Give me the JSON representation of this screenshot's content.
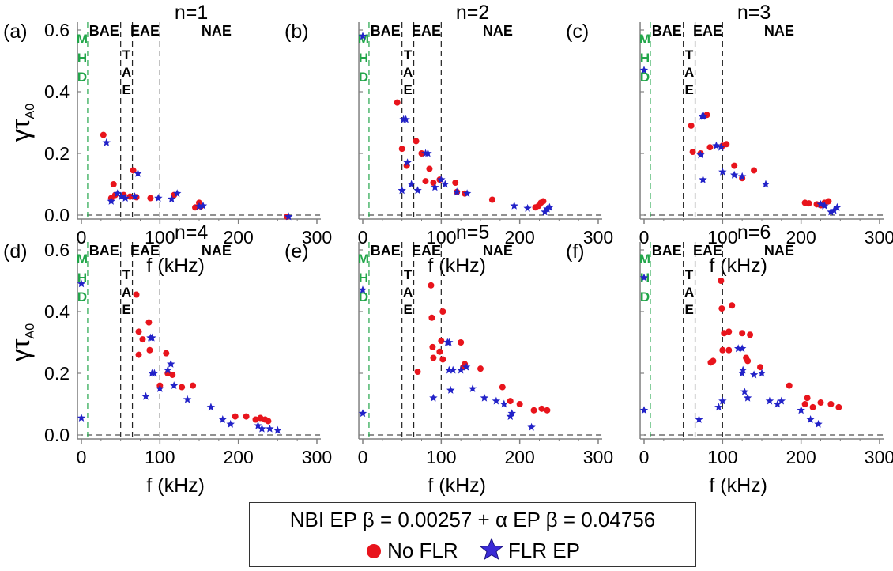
{
  "colors": {
    "no_flr": "#e8141c",
    "flr_ep": "#2222c8",
    "mhd": "#22a64a",
    "axis": "#808080"
  },
  "legend": {
    "title": "NBI EP β = 0.00257 + α EP β = 0.04756",
    "no_flr_label": "No FLR",
    "flr_label": "FLR EP"
  },
  "chart_data": [
    {
      "type": "scatter",
      "panel_label": "(a)",
      "title": "n=1",
      "xlabel": "f (kHz)",
      "ylabel": "γτA0",
      "xlim": [
        -5,
        300
      ],
      "ylim": [
        0,
        0.6
      ],
      "xticks": [
        0,
        100,
        200,
        300
      ],
      "yticks": [
        0.0,
        0.2,
        0.4,
        0.6
      ],
      "band_labels": [
        "BAE",
        "EAE",
        "NAE"
      ],
      "vertical_labels": {
        "mhd": [
          "M",
          "H",
          "D"
        ],
        "tae": [
          "T",
          "A",
          "E"
        ]
      },
      "series": [
        {
          "name": "No FLR",
          "points": [
            [
              28,
              0.26
            ],
            [
              38,
              0.055
            ],
            [
              41,
              0.1
            ],
            [
              43,
              0.065
            ],
            [
              54,
              0.065
            ],
            [
              62,
              0.06
            ],
            [
              66,
              0.145
            ],
            [
              70,
              0.058
            ],
            [
              88,
              0.055
            ],
            [
              118,
              0.065
            ],
            [
              145,
              0.025
            ],
            [
              150,
              0.04
            ],
            [
              152,
              0.028
            ],
            [
              262,
              -0.005
            ]
          ]
        },
        {
          "name": "FLR EP",
          "points": [
            [
              32,
              0.235
            ],
            [
              38,
              0.045
            ],
            [
              46,
              0.07
            ],
            [
              51,
              0.06
            ],
            [
              56,
              0.055
            ],
            [
              68,
              0.06
            ],
            [
              72,
              0.135
            ],
            [
              98,
              0.055
            ],
            [
              115,
              0.052
            ],
            [
              122,
              0.07
            ],
            [
              150,
              0.028
            ],
            [
              155,
              0.03
            ],
            [
              264,
              -0.005
            ]
          ]
        }
      ]
    },
    {
      "type": "scatter",
      "panel_label": "(b)",
      "title": "n=2",
      "xlabel": "f (kHz)",
      "ylabel": "γτA0",
      "xlim": [
        -5,
        300
      ],
      "ylim": [
        0,
        0.6
      ],
      "xticks": [
        0,
        100,
        200,
        300
      ],
      "yticks": [
        0.0,
        0.2,
        0.4,
        0.6
      ],
      "band_labels": [
        "BAE",
        "EAE",
        "NAE"
      ],
      "vertical_labels": {
        "mhd": [
          "M",
          "H",
          "D"
        ],
        "tae": [
          "T",
          "A",
          "E"
        ]
      },
      "series": [
        {
          "name": "No FLR",
          "points": [
            [
              44,
              0.365
            ],
            [
              50,
              0.215
            ],
            [
              56,
              0.16
            ],
            [
              68,
              0.24
            ],
            [
              75,
              0.2
            ],
            [
              80,
              0.11
            ],
            [
              85,
              0.15
            ],
            [
              90,
              0.105
            ],
            [
              98,
              0.115
            ],
            [
              118,
              0.105
            ],
            [
              120,
              0.075
            ],
            [
              130,
              0.07
            ],
            [
              165,
              0.05
            ],
            [
              220,
              0.025
            ],
            [
              224,
              0.03
            ],
            [
              227,
              0.04
            ],
            [
              230,
              0.045
            ]
          ]
        },
        {
          "name": "FLR EP",
          "points": [
            [
              0,
              0.58
            ],
            [
              50,
              0.08
            ],
            [
              52,
              0.31
            ],
            [
              55,
              0.31
            ],
            [
              57,
              0.17
            ],
            [
              62,
              0.1
            ],
            [
              70,
              0.08
            ],
            [
              80,
              0.2
            ],
            [
              83,
              0.2
            ],
            [
              92,
              0.09
            ],
            [
              100,
              0.115
            ],
            [
              105,
              0.1
            ],
            [
              120,
              0.075
            ],
            [
              133,
              0.07
            ],
            [
              193,
              0.03
            ],
            [
              210,
              0.022
            ],
            [
              232,
              0.01
            ],
            [
              235,
              0.02
            ],
            [
              238,
              0.025
            ]
          ]
        }
      ]
    },
    {
      "type": "scatter",
      "panel_label": "(c)",
      "title": "n=3",
      "xlabel": "f (kHz)",
      "ylabel": "γτA0",
      "xlim": [
        -5,
        300
      ],
      "ylim": [
        0,
        0.6
      ],
      "xticks": [
        0,
        100,
        200,
        300
      ],
      "yticks": [
        0.0,
        0.2,
        0.4,
        0.6
      ],
      "band_labels": [
        "BAE",
        "EAE",
        "NAE"
      ],
      "vertical_labels": {
        "mhd": [
          "M",
          "H",
          "D"
        ],
        "tae": [
          "T",
          "A",
          "E"
        ]
      },
      "series": [
        {
          "name": "No FLR",
          "points": [
            [
              60,
              0.29
            ],
            [
              62,
              0.205
            ],
            [
              72,
              0.2
            ],
            [
              80,
              0.325
            ],
            [
              84,
              0.22
            ],
            [
              100,
              0.225
            ],
            [
              105,
              0.23
            ],
            [
              115,
              0.16
            ],
            [
              125,
              0.12
            ],
            [
              140,
              0.145
            ],
            [
              205,
              0.04
            ],
            [
              210,
              0.038
            ],
            [
              220,
              0.035
            ],
            [
              225,
              0.032
            ],
            [
              230,
              0.04
            ],
            [
              235,
              0.045
            ]
          ]
        },
        {
          "name": "FLR EP",
          "points": [
            [
              0,
              0.47
            ],
            [
              72,
              0.195
            ],
            [
              74,
              0.32
            ],
            [
              76,
              0.32
            ],
            [
              75,
              0.115
            ],
            [
              92,
              0.225
            ],
            [
              98,
              0.22
            ],
            [
              100,
              0.14
            ],
            [
              115,
              0.13
            ],
            [
              125,
              0.125
            ],
            [
              155,
              0.1
            ],
            [
              225,
              0.035
            ],
            [
              230,
              0.03
            ],
            [
              238,
              0.01
            ],
            [
              242,
              0.015
            ],
            [
              246,
              0.025
            ]
          ]
        }
      ]
    },
    {
      "type": "scatter",
      "panel_label": "(d)",
      "title": "n=4",
      "xlabel": "f (kHz)",
      "ylabel": "γτA0",
      "xlim": [
        -5,
        300
      ],
      "ylim": [
        0,
        0.6
      ],
      "xticks": [
        0,
        100,
        200,
        300
      ],
      "yticks": [
        0.0,
        0.2,
        0.4,
        0.6
      ],
      "band_labels": [
        "BAE",
        "EAE",
        "NAE"
      ],
      "vertical_labels": {
        "mhd": [
          "M",
          "H",
          "D"
        ],
        "tae": [
          "T",
          "A",
          "E"
        ]
      },
      "series": [
        {
          "name": "No FLR",
          "points": [
            [
              70,
              0.455
            ],
            [
              73,
              0.335
            ],
            [
              78,
              0.31
            ],
            [
              86,
              0.365
            ],
            [
              87,
              0.275
            ],
            [
              73,
              0.26
            ],
            [
              100,
              0.16
            ],
            [
              108,
              0.265
            ],
            [
              110,
              0.2
            ],
            [
              116,
              0.195
            ],
            [
              128,
              0.155
            ],
            [
              142,
              0.16
            ],
            [
              196,
              0.06
            ],
            [
              210,
              0.06
            ],
            [
              222,
              0.05
            ],
            [
              228,
              0.055
            ],
            [
              234,
              0.05
            ],
            [
              238,
              0.045
            ]
          ]
        },
        {
          "name": "FLR EP",
          "points": [
            [
              0,
              0.055
            ],
            [
              0,
              0.49
            ],
            [
              82,
              0.125
            ],
            [
              88,
              0.315
            ],
            [
              90,
              0.315
            ],
            [
              90,
              0.2
            ],
            [
              93,
              0.2
            ],
            [
              100,
              0.15
            ],
            [
              110,
              0.21
            ],
            [
              114,
              0.23
            ],
            [
              118,
              0.16
            ],
            [
              135,
              0.115
            ],
            [
              165,
              0.09
            ],
            [
              180,
              0.05
            ],
            [
              190,
              0.035
            ],
            [
              225,
              0.03
            ],
            [
              230,
              0.02
            ],
            [
              240,
              0.02
            ],
            [
              250,
              0.015
            ]
          ]
        }
      ]
    },
    {
      "type": "scatter",
      "panel_label": "(e)",
      "title": "n=5",
      "xlabel": "f (kHz)",
      "ylabel": "γτA0",
      "xlim": [
        -5,
        300
      ],
      "ylim": [
        0,
        0.6
      ],
      "xticks": [
        0,
        100,
        200,
        300
      ],
      "yticks": [
        0.0,
        0.2,
        0.4,
        0.6
      ],
      "band_labels": [
        "BAE",
        "EAE",
        "NAE"
      ],
      "vertical_labels": {
        "mhd": [
          "M",
          "H",
          "D"
        ],
        "tae": [
          "T",
          "A",
          "E"
        ]
      },
      "series": [
        {
          "name": "No FLR",
          "points": [
            [
              70,
              0.205
            ],
            [
              87,
              0.485
            ],
            [
              88,
              0.38
            ],
            [
              89,
              0.285
            ],
            [
              90,
              0.25
            ],
            [
              98,
              0.27
            ],
            [
              100,
              0.305
            ],
            [
              102,
              0.4
            ],
            [
              102,
              0.245
            ],
            [
              125,
              0.3
            ],
            [
              128,
              0.22
            ],
            [
              130,
              0.23
            ],
            [
              150,
              0.215
            ],
            [
              178,
              0.155
            ],
            [
              188,
              0.11
            ],
            [
              200,
              0.1
            ],
            [
              218,
              0.08
            ],
            [
              228,
              0.085
            ],
            [
              235,
              0.08
            ]
          ]
        },
        {
          "name": "FLR EP",
          "points": [
            [
              0,
              0.07
            ],
            [
              0,
              0.47
            ],
            [
              90,
              0.12
            ],
            [
              108,
              0.3
            ],
            [
              110,
              0.3
            ],
            [
              110,
              0.21
            ],
            [
              112,
              0.145
            ],
            [
              115,
              0.21
            ],
            [
              125,
              0.21
            ],
            [
              132,
              0.22
            ],
            [
              140,
              0.15
            ],
            [
              155,
              0.12
            ],
            [
              170,
              0.11
            ],
            [
              180,
              0.1
            ],
            [
              188,
              0.06
            ],
            [
              190,
              0.07
            ],
            [
              215,
              0.025
            ]
          ]
        }
      ]
    },
    {
      "type": "scatter",
      "panel_label": "(f)",
      "title": "n=6",
      "xlabel": "f (kHz)",
      "ylabel": "γτA0",
      "xlim": [
        -5,
        300
      ],
      "ylim": [
        0,
        0.6
      ],
      "xticks": [
        0,
        100,
        200,
        300
      ],
      "yticks": [
        0.0,
        0.2,
        0.4,
        0.6
      ],
      "band_labels": [
        "BAE",
        "EAE",
        "NAE"
      ],
      "vertical_labels": {
        "mhd": [
          "M",
          "H",
          "D"
        ],
        "tae": [
          "T",
          "A",
          "E"
        ]
      },
      "series": [
        {
          "name": "No FLR",
          "points": [
            [
              85,
              0.235
            ],
            [
              88,
              0.24
            ],
            [
              98,
              0.5
            ],
            [
              99,
              0.41
            ],
            [
              100,
              0.275
            ],
            [
              102,
              0.33
            ],
            [
              108,
              0.335
            ],
            [
              108,
              0.275
            ],
            [
              112,
              0.42
            ],
            [
              125,
              0.33
            ],
            [
              130,
              0.25
            ],
            [
              132,
              0.24
            ],
            [
              135,
              0.325
            ],
            [
              148,
              0.22
            ],
            [
              185,
              0.16
            ],
            [
              205,
              0.1
            ],
            [
              208,
              0.12
            ],
            [
              215,
              0.09
            ],
            [
              225,
              0.105
            ],
            [
              238,
              0.1
            ],
            [
              248,
              0.09
            ]
          ]
        },
        {
          "name": "FLR EP",
          "points": [
            [
              0,
              0.08
            ],
            [
              0,
              0.51
            ],
            [
              70,
              0.05
            ],
            [
              95,
              0.09
            ],
            [
              100,
              0.11
            ],
            [
              120,
              0.28
            ],
            [
              125,
              0.28
            ],
            [
              125,
              0.2
            ],
            [
              126,
              0.21
            ],
            [
              128,
              0.14
            ],
            [
              132,
              0.12
            ],
            [
              140,
              0.195
            ],
            [
              150,
              0.2
            ],
            [
              160,
              0.11
            ],
            [
              170,
              0.1
            ],
            [
              175,
              0.11
            ],
            [
              200,
              0.08
            ],
            [
              212,
              0.05
            ],
            [
              222,
              0.035
            ]
          ]
        }
      ]
    }
  ]
}
